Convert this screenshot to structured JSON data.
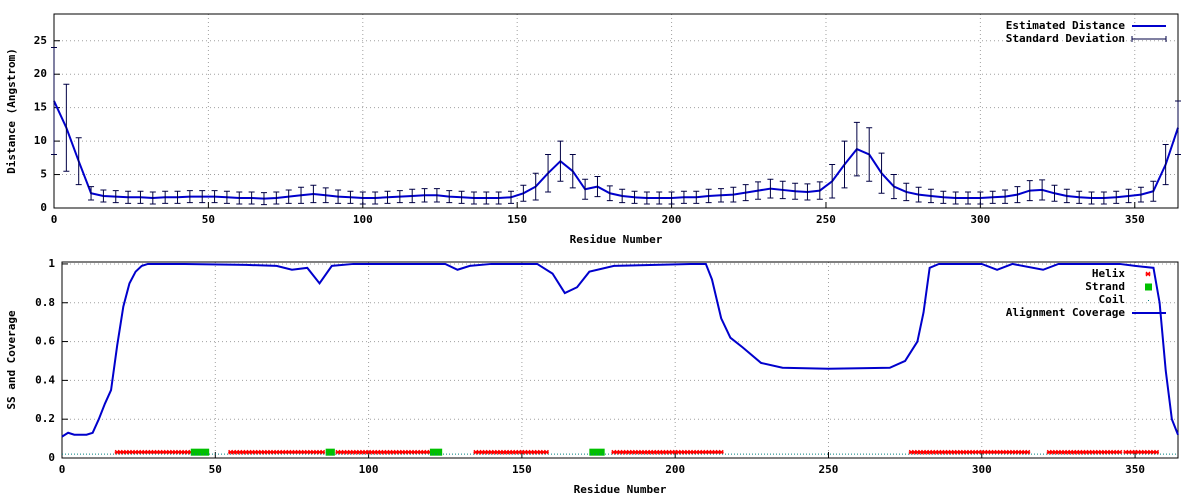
{
  "chart_data": [
    {
      "type": "line",
      "xlabel": "Residue Number",
      "ylabel": "Distance (Angstrom)",
      "x": [
        0,
        4,
        8,
        12,
        16,
        20,
        24,
        28,
        32,
        36,
        40,
        44,
        48,
        52,
        56,
        60,
        64,
        68,
        72,
        76,
        80,
        84,
        88,
        92,
        96,
        100,
        104,
        108,
        112,
        116,
        120,
        124,
        128,
        132,
        136,
        140,
        144,
        148,
        152,
        156,
        160,
        164,
        168,
        172,
        176,
        180,
        184,
        188,
        192,
        196,
        200,
        204,
        208,
        212,
        216,
        220,
        224,
        228,
        232,
        236,
        240,
        244,
        248,
        252,
        256,
        260,
        264,
        268,
        272,
        276,
        280,
        284,
        288,
        292,
        296,
        300,
        304,
        308,
        312,
        316,
        320,
        324,
        328,
        332,
        336,
        340,
        344,
        348,
        352,
        356,
        360,
        364
      ],
      "series": [
        {
          "name": "Estimated Distance",
          "color": "#0000cc",
          "values": [
            16,
            12,
            7,
            2.2,
            1.8,
            1.7,
            1.6,
            1.6,
            1.5,
            1.6,
            1.6,
            1.7,
            1.7,
            1.7,
            1.6,
            1.5,
            1.5,
            1.4,
            1.5,
            1.7,
            1.9,
            2.1,
            1.9,
            1.7,
            1.6,
            1.5,
            1.5,
            1.6,
            1.7,
            1.8,
            1.9,
            1.9,
            1.7,
            1.6,
            1.5,
            1.5,
            1.5,
            1.6,
            2.2,
            3.2,
            5.2,
            7,
            5.5,
            2.8,
            3.2,
            2.2,
            1.8,
            1.6,
            1.5,
            1.5,
            1.5,
            1.6,
            1.6,
            1.8,
            1.9,
            2,
            2.3,
            2.6,
            2.9,
            2.7,
            2.5,
            2.4,
            2.6,
            4,
            6.5,
            8.8,
            8,
            5.2,
            3.2,
            2.4,
            2,
            1.8,
            1.6,
            1.5,
            1.5,
            1.5,
            1.6,
            1.7,
            2,
            2.6,
            2.7,
            2.2,
            1.8,
            1.6,
            1.5,
            1.5,
            1.6,
            1.8,
            2,
            2.5,
            6.5,
            12
          ]
        },
        {
          "name": "Standard Deviation",
          "color": "#000044",
          "errors": [
            8,
            6.5,
            3.5,
            1,
            0.9,
            0.9,
            0.9,
            0.9,
            0.9,
            0.9,
            0.9,
            0.9,
            0.9,
            0.9,
            0.9,
            0.9,
            0.9,
            0.9,
            0.9,
            1,
            1.2,
            1.3,
            1.1,
            1,
            0.9,
            0.9,
            0.9,
            0.9,
            0.9,
            1,
            1,
            1,
            0.9,
            0.9,
            0.9,
            0.9,
            0.9,
            0.9,
            1.2,
            2,
            2.8,
            3,
            2.5,
            1.5,
            1.5,
            1.1,
            1,
            0.9,
            0.9,
            0.9,
            0.9,
            0.9,
            0.9,
            1,
            1,
            1.1,
            1.2,
            1.3,
            1.4,
            1.3,
            1.2,
            1.2,
            1.3,
            2.5,
            3.5,
            4,
            4,
            3,
            1.8,
            1.3,
            1.1,
            1,
            0.9,
            0.9,
            0.9,
            0.9,
            0.9,
            1,
            1.2,
            1.5,
            1.5,
            1.2,
            1,
            0.9,
            0.9,
            0.9,
            0.9,
            1,
            1.1,
            1.5,
            3,
            4
          ]
        }
      ],
      "xlim": [
        0,
        364
      ],
      "xticks": [
        0,
        50,
        100,
        150,
        200,
        250,
        300,
        350
      ],
      "ylim": [
        0,
        29
      ],
      "yticks": [
        0,
        5,
        10,
        15,
        20,
        25
      ],
      "grid": true,
      "legend": "top-right"
    },
    {
      "type": "line",
      "xlabel": "Residue Number",
      "ylabel": "SS and Coverage",
      "series": [
        {
          "name": "Helix",
          "color": "#ff0000",
          "marker": "cross",
          "y": 0.03,
          "ranges": [
            [
              18,
              42
            ],
            [
              55,
              85
            ],
            [
              90,
              120
            ],
            [
              135,
              158
            ],
            [
              180,
              215
            ],
            [
              277,
              315
            ],
            [
              322,
              345
            ],
            [
              347,
              357
            ]
          ]
        },
        {
          "name": "Strand",
          "color": "#00c000",
          "marker": "square",
          "y": 0.03,
          "ranges": [
            [
              42,
              48
            ],
            [
              86,
              89
            ],
            [
              120,
              124
            ],
            [
              172,
              177
            ]
          ]
        },
        {
          "name": "Coil",
          "color": "#008080",
          "marker": "dot",
          "y": 0.02,
          "ranges": [
            [
              0,
              364
            ]
          ]
        },
        {
          "name": "Alignment Coverage",
          "color": "#0000cc",
          "x": [
            0,
            2,
            4,
            6,
            8,
            10,
            12,
            14,
            16,
            18,
            20,
            22,
            24,
            26,
            28,
            40,
            60,
            70,
            75,
            80,
            84,
            88,
            95,
            125,
            129,
            133,
            140,
            155,
            160,
            164,
            168,
            172,
            180,
            205,
            210,
            212,
            215,
            218,
            222,
            228,
            235,
            250,
            270,
            275,
            279,
            281,
            283,
            286,
            300,
            305,
            310,
            320,
            325,
            345,
            350,
            356,
            358,
            360,
            362,
            364
          ],
          "values": [
            0.11,
            0.13,
            0.12,
            0.12,
            0.12,
            0.13,
            0.2,
            0.28,
            0.35,
            0.58,
            0.78,
            0.9,
            0.96,
            0.99,
            1,
            1,
            0.995,
            0.99,
            0.97,
            0.98,
            0.9,
            0.99,
            1,
            1,
            0.97,
            0.99,
            1,
            1,
            0.95,
            0.85,
            0.88,
            0.96,
            0.99,
            1,
            1,
            0.92,
            0.72,
            0.62,
            0.57,
            0.49,
            0.465,
            0.46,
            0.465,
            0.5,
            0.6,
            0.75,
            0.98,
            1,
            1,
            0.97,
            1,
            0.97,
            1,
            1,
            0.99,
            0.98,
            0.8,
            0.45,
            0.2,
            0.12
          ]
        }
      ],
      "xlim": [
        0,
        364
      ],
      "xticks": [
        0,
        50,
        100,
        150,
        200,
        250,
        300,
        350
      ],
      "ylim": [
        0,
        1.01
      ],
      "yticks": [
        0,
        0.2,
        0.4,
        0.6,
        0.8,
        1
      ],
      "grid": true,
      "legend": "top-right"
    }
  ]
}
